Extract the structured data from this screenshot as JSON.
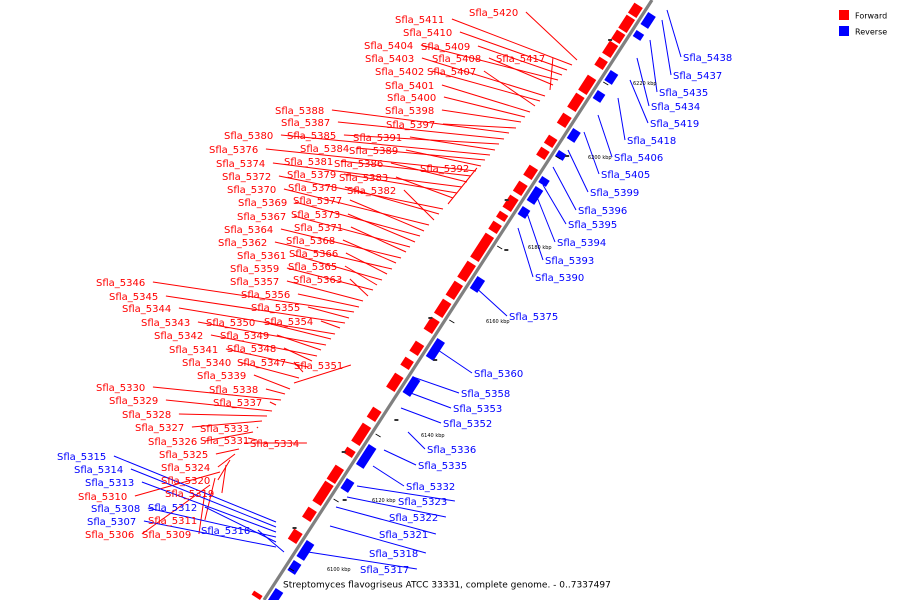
{
  "caption": "Streptomyces flavogriseus ATCC 33331, complete genome. - 0..7337497",
  "legend": [
    {
      "label": "Forward",
      "color": "#ff0000"
    },
    {
      "label": "Reverse",
      "color": "#0000ff"
    }
  ],
  "colors": {
    "forward": "#ff0000",
    "reverse": "#0000ff",
    "backbone": "#808080"
  },
  "ticks": [
    "6100 kbp",
    "6120 kbp",
    "6140 kbp",
    "6160 kbp",
    "6180 kbp",
    "6200 kbp",
    "6220 kbp"
  ],
  "forward_labels": [
    "Sfla_5420",
    "Sfla_5411",
    "Sfla_5410",
    "Sfla_5409",
    "Sfla_5404",
    "Sfla_5408",
    "Sfla_5417",
    "Sfla_5403",
    "Sfla_5402",
    "Sfla_5407",
    "Sfla_5401",
    "Sfla_5400",
    "Sfla_5398",
    "Sfla_5397",
    "Sfla_5388",
    "Sfla_5387",
    "Sfla_5385",
    "Sfla_5391",
    "Sfla_5380",
    "Sfla_5384",
    "Sfla_5389",
    "Sfla_5376",
    "Sfla_5381",
    "Sfla_5386",
    "Sfla_5374",
    "Sfla_5379",
    "Sfla_5383",
    "Sfla_5392",
    "Sfla_5372",
    "Sfla_5378",
    "Sfla_5382",
    "Sfla_5370",
    "Sfla_5377",
    "Sfla_5369",
    "Sfla_5373",
    "Sfla_5367",
    "Sfla_5371",
    "Sfla_5364",
    "Sfla_5368",
    "Sfla_5362",
    "Sfla_5366",
    "Sfla_5361",
    "Sfla_5365",
    "Sfla_5359",
    "Sfla_5363",
    "Sfla_5357",
    "Sfla_5356",
    "Sfla_5346",
    "Sfla_5355",
    "Sfla_5345",
    "Sfla_5354",
    "Sfla_5344",
    "Sfla_5350",
    "Sfla_5343",
    "Sfla_5349",
    "Sfla_5342",
    "Sfla_5348",
    "Sfla_5341",
    "Sfla_5347",
    "Sfla_5340",
    "Sfla_5351",
    "Sfla_5339",
    "Sfla_5338",
    "Sfla_5330",
    "Sfla_5337",
    "Sfla_5329",
    "Sfla_5328",
    "Sfla_5327",
    "Sfla_5333",
    "Sfla_5326",
    "Sfla_5331",
    "Sfla_5334",
    "Sfla_5325",
    "Sfla_5324",
    "Sfla_5320",
    "Sfla_5319",
    "Sfla_5310",
    "Sfla_5311",
    "Sfla_5306",
    "Sfla_5309"
  ],
  "reverse_labels": [
    "Sfla_5438",
    "Sfla_5437",
    "Sfla_5435",
    "Sfla_5434",
    "Sfla_5419",
    "Sfla_5418",
    "Sfla_5406",
    "Sfla_5405",
    "Sfla_5399",
    "Sfla_5396",
    "Sfla_5395",
    "Sfla_5394",
    "Sfla_5393",
    "Sfla_5390",
    "Sfla_5375",
    "Sfla_5360",
    "Sfla_5358",
    "Sfla_5353",
    "Sfla_5352",
    "Sfla_5336",
    "Sfla_5335",
    "Sfla_5332",
    "Sfla_5323",
    "Sfla_5322",
    "Sfla_5321",
    "Sfla_5318",
    "Sfla_5317",
    "Sfla_5315",
    "Sfla_5314",
    "Sfla_5313",
    "Sfla_5308",
    "Sfla_5312",
    "Sfla_5307",
    "Sfla_5316"
  ]
}
